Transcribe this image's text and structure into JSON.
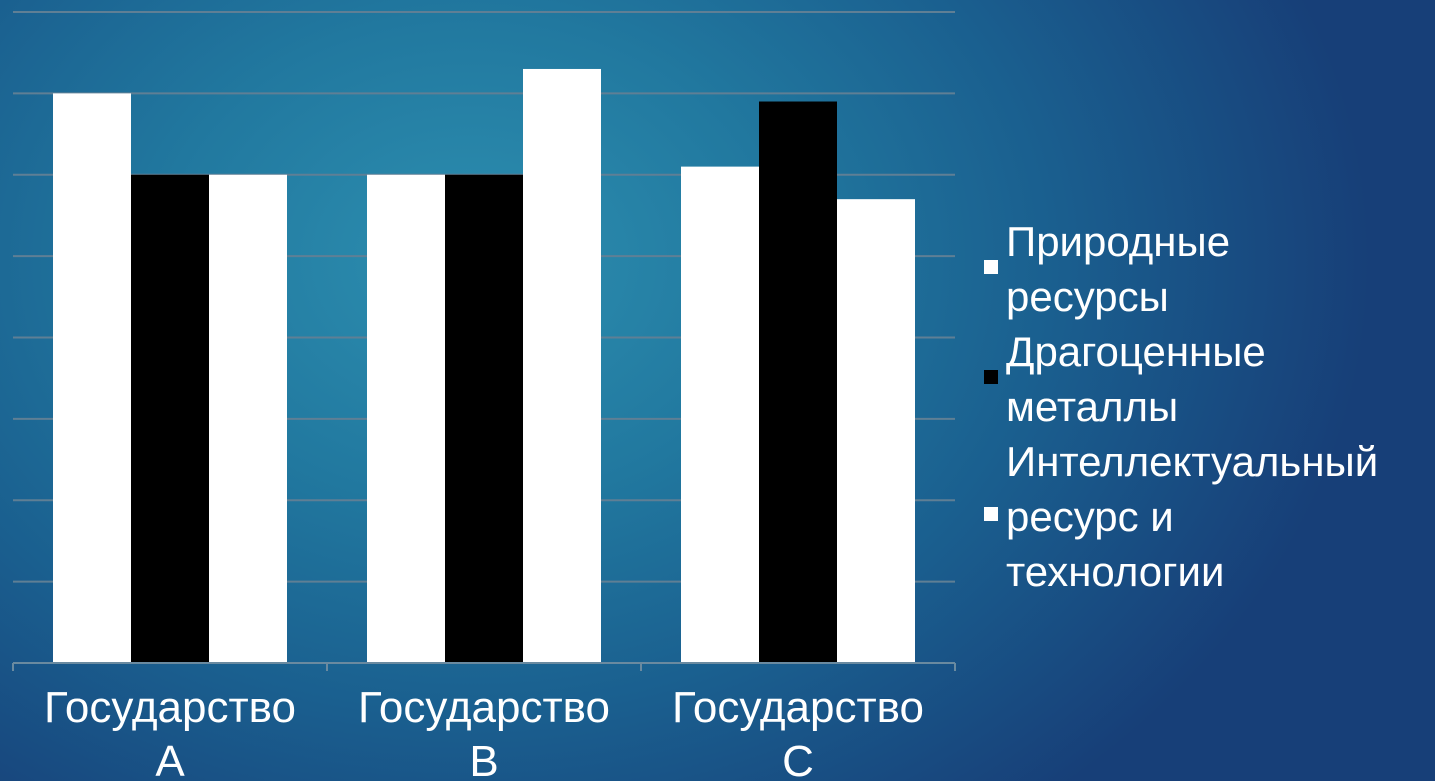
{
  "chart_data": {
    "type": "bar",
    "categories": [
      "Государство\nА",
      "Государство\nВ",
      "Государство\nС"
    ],
    "series": [
      {
        "name": "Природные\nресурсы",
        "color": "#ffffff",
        "values": [
          7.0,
          6.0,
          6.1
        ]
      },
      {
        "name": "Драгоценные\nметаллы",
        "color": "#000000",
        "values": [
          6.0,
          6.0,
          6.9
        ]
      },
      {
        "name": "Интеллектуальный\nресурс и\nтехнологии",
        "color": "#ffffff",
        "values": [
          6.0,
          7.3,
          5.7
        ]
      }
    ],
    "ylim": [
      0,
      8
    ],
    "grid": true,
    "legend_position": "right"
  }
}
